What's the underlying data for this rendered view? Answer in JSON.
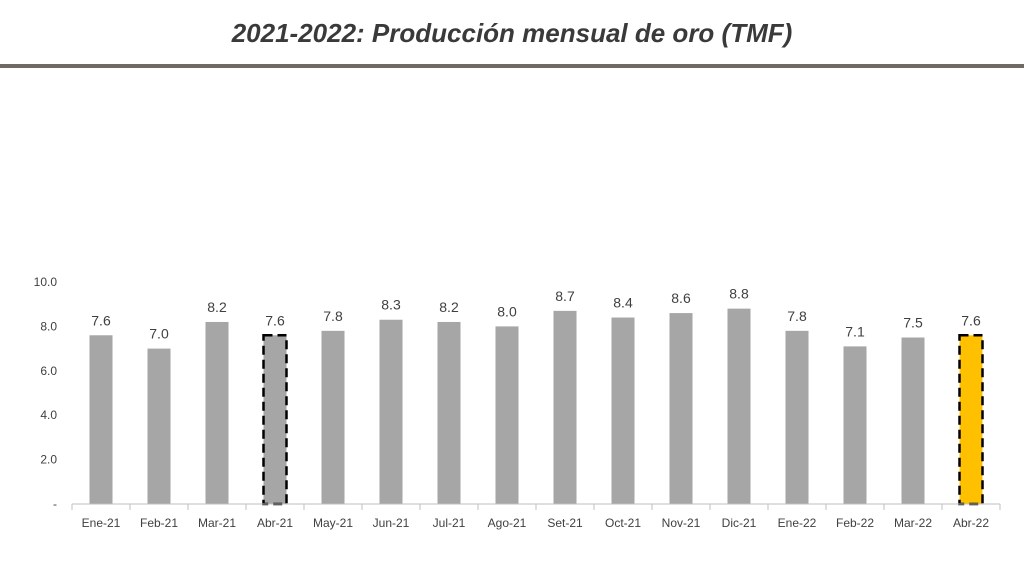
{
  "header": {
    "title": "2021-2022: Producción mensual de oro (TMF)"
  },
  "colors": {
    "bar": "#a6a6a6",
    "highlight": "#ffc000",
    "axis": "#bfbfbf",
    "rule": "#6f6a64"
  },
  "chart_data": {
    "type": "bar",
    "title": "2021-2022: Producción mensual de oro (TMF)",
    "xlabel": "",
    "ylabel": "",
    "categories": [
      "Ene-21",
      "Feb-21",
      "Mar-21",
      "Abr-21",
      "May-21",
      "Jun-21",
      "Jul-21",
      "Ago-21",
      "Set-21",
      "Oct-21",
      "Nov-21",
      "Dic-21",
      "Ene-22",
      "Feb-22",
      "Mar-22",
      "Abr-22"
    ],
    "values": [
      7.6,
      7.0,
      8.2,
      7.6,
      7.8,
      8.3,
      8.2,
      8.0,
      8.7,
      8.4,
      8.6,
      8.8,
      7.8,
      7.1,
      7.5,
      7.6
    ],
    "data_labels": [
      "7.6",
      "7.0",
      "8.2",
      "7.6",
      "7.8",
      "8.3",
      "8.2",
      "8.0",
      "8.7",
      "8.4",
      "8.6",
      "8.8",
      "7.8",
      "7.1",
      "7.5",
      "7.6"
    ],
    "ylim": [
      0,
      10
    ],
    "yticks": [
      0,
      2,
      4,
      6,
      8,
      10
    ],
    "ytick_labels": [
      "-",
      "2.0",
      "4.0",
      "6.0",
      "8.0",
      "10.0"
    ],
    "grid": false,
    "legend": "none",
    "highlighted": [
      {
        "category": "Abr-21",
        "style": "dashed-outline",
        "fill": "gray"
      },
      {
        "category": "Abr-22",
        "style": "dashed-outline",
        "fill": "gold"
      }
    ]
  }
}
